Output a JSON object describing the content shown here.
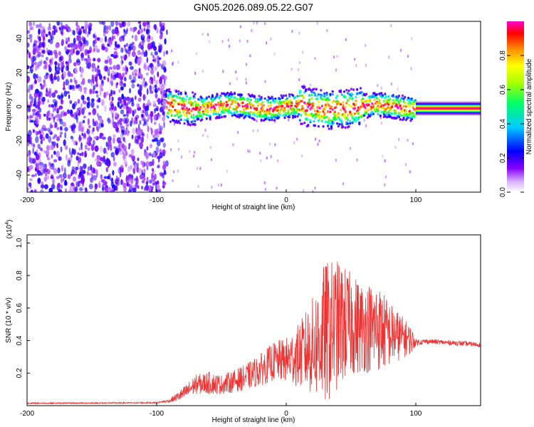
{
  "figure": {
    "title": "GN05.2026.089.05.22.G07"
  },
  "colors": {
    "trace": "#ee3333",
    "axis": "#000000",
    "background": "#ffffff"
  },
  "chart_data": [
    {
      "type": "heatmap",
      "name": "spectrogram",
      "xlabel": "Height of straight line (km)",
      "ylabel": "Frequency (Hz)",
      "xlim": [
        -200,
        150
      ],
      "ylim": [
        -50,
        50
      ],
      "x_ticks": [
        -200,
        -100,
        0,
        100
      ],
      "x_tick_labels": [
        "-200",
        "-100",
        "0",
        "100"
      ],
      "y_ticks": [
        -40,
        -20,
        0,
        20,
        40
      ],
      "y_tick_labels": [
        "-40",
        "-20",
        "0",
        "20",
        "40"
      ],
      "colorbar": {
        "label": "Normalized spectral amplitude",
        "range": [
          0,
          1
        ],
        "ticks": [
          0.0,
          0.2,
          0.4,
          0.6,
          0.8
        ],
        "tick_labels": [
          "0.0",
          "0.2",
          "0.4",
          "0.6",
          "0.8"
        ],
        "colormap": [
          "#ffffff",
          "#8800ff",
          "#0000ff",
          "#00ffff",
          "#00ff00",
          "#ffff00",
          "#ff8800",
          "#ff0000",
          "#ff00ff"
        ]
      },
      "regions": [
        {
          "description": "broadband noise",
          "x_range": [
            -200,
            -92
          ],
          "freq_range": [
            -50,
            50
          ],
          "amplitude": 0.15
        },
        {
          "description": "signal band",
          "x_range": [
            -92,
            100
          ],
          "center_freq": 0,
          "half_width_hz": 8,
          "peak_amplitude": 1.0
        },
        {
          "description": "extrapolated band",
          "x_range": [
            100,
            150
          ],
          "center_freq": -1,
          "half_width_hz": 3,
          "peak_amplitude": 0.9
        }
      ]
    },
    {
      "type": "line",
      "name": "snr",
      "xlabel": "Height of straight line (km)",
      "ylabel": "SNR (10 * v/v)",
      "y_scale_label": "(x10",
      "y_scale_exp": "4",
      "xlim": [
        -200,
        150
      ],
      "ylim": [
        0,
        1.05
      ],
      "x_ticks": [
        -200,
        -100,
        0,
        100
      ],
      "x_tick_labels": [
        "-200",
        "-100",
        "0",
        "100"
      ],
      "y_ticks": [
        0.2,
        0.4,
        0.6,
        0.8,
        1.0
      ],
      "y_tick_labels": [
        "0.2",
        "0.4",
        "0.6",
        "0.8",
        "1.0"
      ],
      "series": [
        {
          "name": "SNR",
          "color": "#ee3333",
          "envelope_x": [
            -200,
            -150,
            -100,
            -90,
            -80,
            -70,
            -60,
            -50,
            -40,
            -30,
            -20,
            -10,
            0,
            10,
            20,
            30,
            40,
            50,
            60,
            70,
            80,
            90,
            97,
            100,
            110,
            120,
            130,
            140,
            150
          ],
          "envelope_mean": [
            0.015,
            0.016,
            0.018,
            0.03,
            0.07,
            0.13,
            0.14,
            0.13,
            0.15,
            0.18,
            0.22,
            0.27,
            0.28,
            0.31,
            0.36,
            0.44,
            0.5,
            0.5,
            0.48,
            0.48,
            0.44,
            0.42,
            0.4,
            0.39,
            0.395,
            0.39,
            0.385,
            0.38,
            0.375
          ],
          "envelope_amp": [
            0.004,
            0.004,
            0.004,
            0.01,
            0.04,
            0.06,
            0.07,
            0.06,
            0.07,
            0.08,
            0.1,
            0.12,
            0.14,
            0.2,
            0.3,
            0.45,
            0.4,
            0.32,
            0.28,
            0.28,
            0.2,
            0.13,
            0.08,
            0.02,
            0.015,
            0.015,
            0.015,
            0.015,
            0.015
          ]
        }
      ]
    }
  ]
}
